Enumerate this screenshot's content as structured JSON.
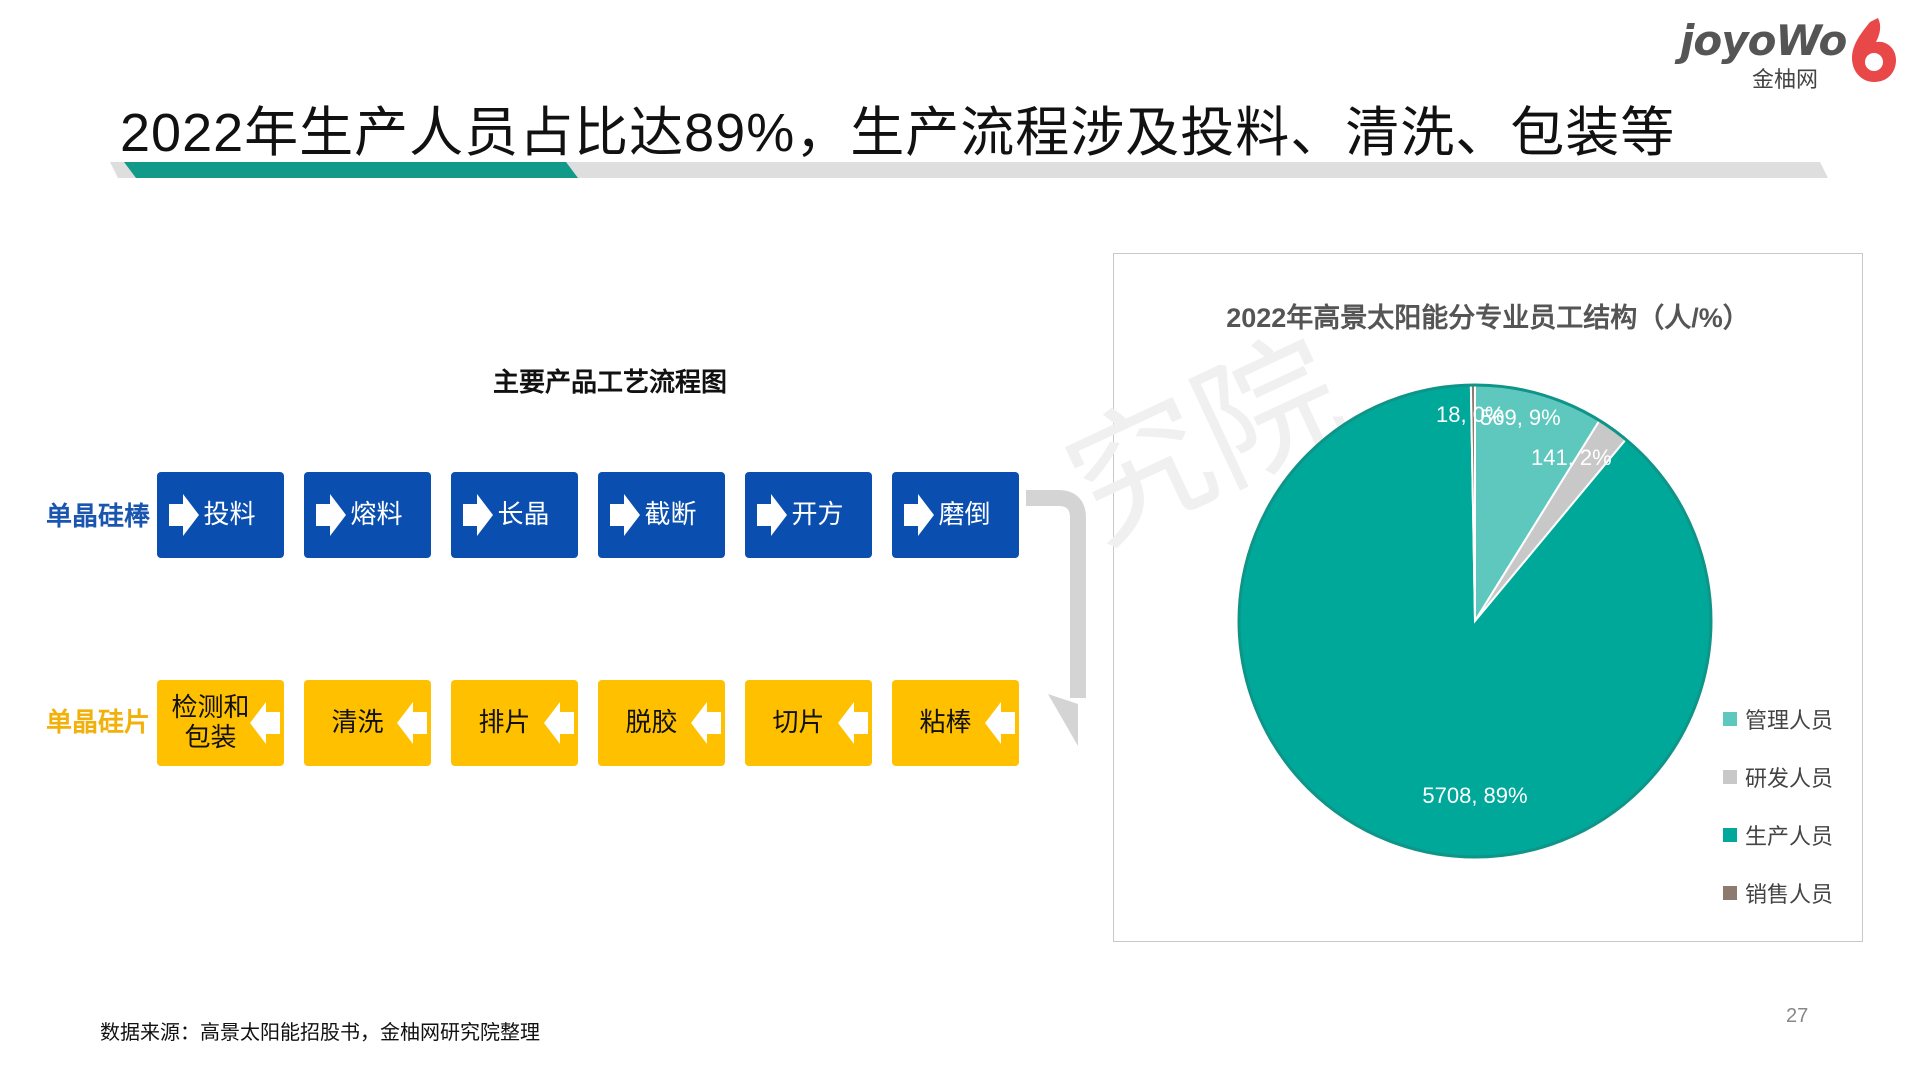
{
  "logo": {
    "wordmark": "joyoWo",
    "sub": "金柚网"
  },
  "title": "2022年生产人员占比达89%，生产流程涉及投料、清洗、包装等",
  "flow": {
    "title": "主要产品工艺流程图",
    "row1": {
      "label": "单晶硅棒",
      "color": "#0a4fb0",
      "steps": [
        "投料",
        "熔料",
        "长晶",
        "截断",
        "开方",
        "磨倒"
      ]
    },
    "row2": {
      "label": "单晶硅片",
      "color": "#ffc000",
      "steps": [
        "粘棒",
        "切片",
        "脱胶",
        "排片",
        "清洗",
        "检测和包装"
      ]
    },
    "step6_lines": [
      "检测和",
      "包装"
    ]
  },
  "chart_data": {
    "type": "pie",
    "title": "2022年高景太阳能分专业员工结构（人/%）",
    "series": [
      {
        "name": "管理人员",
        "value": 569,
        "percent": 9,
        "label": "569, 9%",
        "color": "#5ec8bf"
      },
      {
        "name": "研发人员",
        "value": 141,
        "percent": 2,
        "label": "141, 2%",
        "color": "#c8c8c8"
      },
      {
        "name": "生产人员",
        "value": 5708,
        "percent": 89,
        "label": "5708, 89%",
        "color": "#00a89a"
      },
      {
        "name": "销售人员",
        "value": 18,
        "percent": 0,
        "label": "18, 0%",
        "color": "#8c7b6e"
      }
    ],
    "legend_position": "right"
  },
  "source": "数据来源：高景太阳能招股书，金柚网研究院整理",
  "page_number": "27"
}
